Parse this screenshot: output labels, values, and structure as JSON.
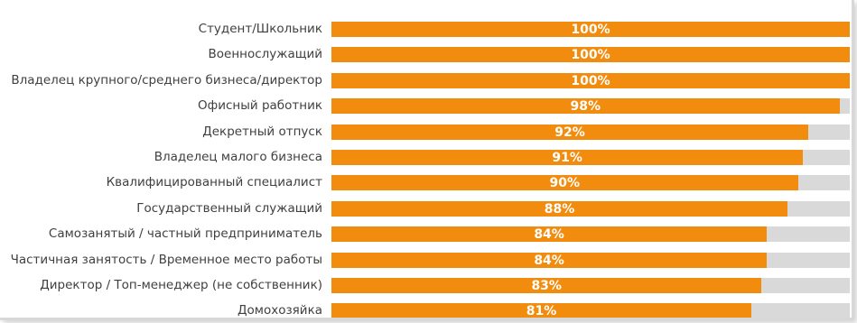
{
  "chart_data": {
    "type": "bar",
    "orientation": "horizontal",
    "categories": [
      "Студент/Школьник",
      "Военнослужащий",
      "Владелец крупного/среднего бизнеса/директор",
      "Офисный работник",
      "Декретный отпуск",
      "Владелец малого бизнеса",
      "Квалифицированный специалист",
      "Государственный служащий",
      "Самозанятый / частный предприниматель",
      "Частичная занятость / Временное место работы",
      "Директор / Топ-менеджер (не собственник)",
      "Домохозяйка"
    ],
    "values": [
      100,
      100,
      100,
      98,
      92,
      91,
      90,
      88,
      84,
      84,
      83,
      81
    ],
    "value_labels": [
      "100%",
      "100%",
      "100%",
      "98%",
      "92%",
      "91%",
      "90%",
      "88%",
      "84%",
      "84%",
      "83%",
      "81%"
    ],
    "xlim": [
      0,
      100
    ],
    "grid": false,
    "colors": {
      "bar": "#f28c0f",
      "track": "#d9d9d9",
      "value_text": "#ffffff",
      "category_text": "#404040"
    }
  }
}
